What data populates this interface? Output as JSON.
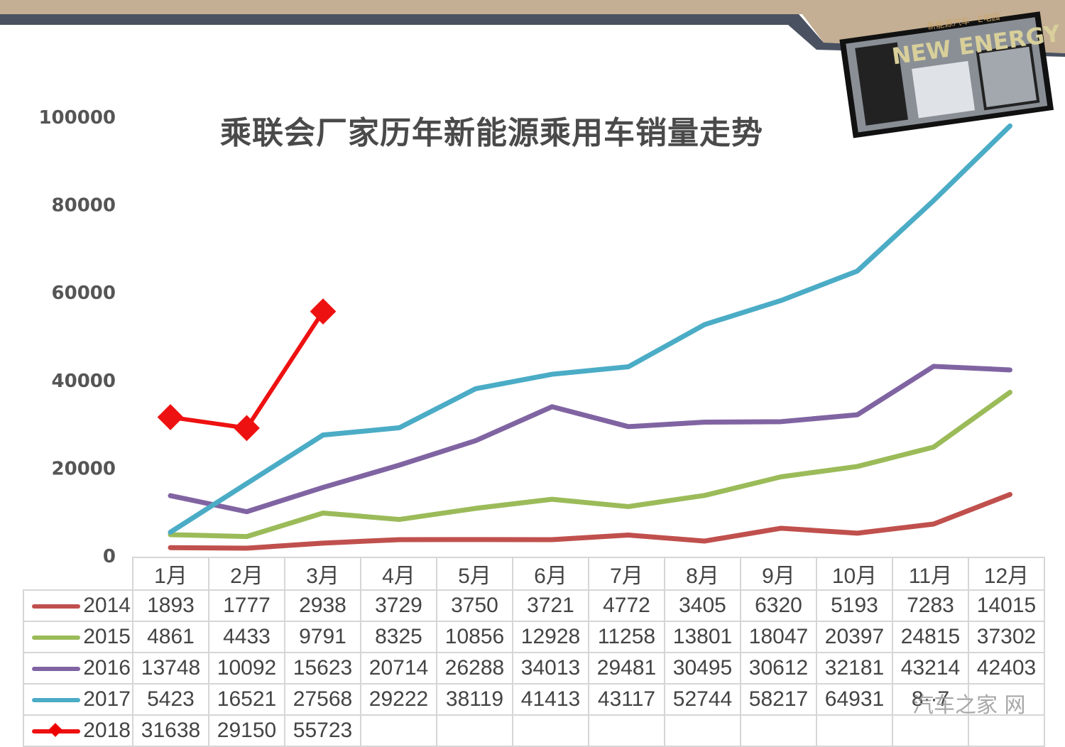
{
  "header": {
    "band_color": "#c4af94",
    "bar_color": "#4a5261"
  },
  "logo": {
    "text_top": "新能源汽车 · E电园",
    "text_main": "NEW ENERGY",
    "text_brand": "E电园"
  },
  "watermark": {
    "text": "汽车之家 网"
  },
  "table": {
    "months": [
      "1月",
      "2月",
      "3月",
      "4月",
      "5月",
      "6月",
      "7月",
      "8月",
      "9月",
      "10月",
      "11月",
      "12月"
    ],
    "rows": [
      {
        "year": "2014",
        "color": "#c0504d",
        "marker": "line",
        "cells": [
          "1893",
          "1777",
          "2938",
          "3729",
          "3750",
          "3721",
          "4772",
          "3405",
          "6320",
          "5193",
          "7283",
          "14015"
        ]
      },
      {
        "year": "2015",
        "color": "#9bbb59",
        "marker": "line",
        "cells": [
          "4861",
          "4433",
          "9791",
          "8325",
          "10856",
          "12928",
          "11258",
          "13801",
          "18047",
          "20397",
          "24815",
          "37302"
        ]
      },
      {
        "year": "2016",
        "color": "#8064a2",
        "marker": "line",
        "cells": [
          "13748",
          "10092",
          "15623",
          "20714",
          "26288",
          "34013",
          "29481",
          "30495",
          "30612",
          "32181",
          "43214",
          "42403"
        ]
      },
      {
        "year": "2017",
        "color": "#4bacc6",
        "marker": "line",
        "cells": [
          "5423",
          "16521",
          "27568",
          "29222",
          "38119",
          "41413",
          "43117",
          "52744",
          "58217",
          "64931",
          "8··7",
          ""
        ]
      },
      {
        "year": "2018",
        "color": "#ee1111",
        "marker": "diamond",
        "cells": [
          "31638",
          "29150",
          "55723",
          "",
          "",
          "",
          "",
          "",
          "",
          "",
          "",
          ""
        ]
      }
    ]
  },
  "chart_data": {
    "type": "line",
    "title": "乘联会厂家历年新能源乘用车销量走势",
    "xlabel": "",
    "ylabel": "",
    "categories": [
      "1月",
      "2月",
      "3月",
      "4月",
      "5月",
      "6月",
      "7月",
      "8月",
      "9月",
      "10月",
      "11月",
      "12月"
    ],
    "ylim": [
      0,
      100000
    ],
    "yticks": [
      0,
      20000,
      40000,
      60000,
      80000,
      100000
    ],
    "grid": false,
    "legend_position": "data-table-bottom",
    "series": [
      {
        "name": "2014",
        "color": "#c0504d",
        "values": [
          1893,
          1777,
          2938,
          3729,
          3750,
          3721,
          4772,
          3405,
          6320,
          5193,
          7283,
          14015
        ]
      },
      {
        "name": "2015",
        "color": "#9bbb59",
        "values": [
          4861,
          4433,
          9791,
          8325,
          10856,
          12928,
          11258,
          13801,
          18047,
          20397,
          24815,
          37302
        ]
      },
      {
        "name": "2016",
        "color": "#8064a2",
        "values": [
          13748,
          10092,
          15623,
          20714,
          26288,
          34013,
          29481,
          30495,
          30612,
          32181,
          43214,
          42403
        ]
      },
      {
        "name": "2017",
        "color": "#4bacc6",
        "values": [
          5423,
          16521,
          27568,
          29222,
          38119,
          41413,
          43117,
          52744,
          58217,
          64931,
          81000,
          98000
        ]
      },
      {
        "name": "2018",
        "color": "#ee1111",
        "marker": "diamond",
        "values": [
          31638,
          29150,
          55723,
          null,
          null,
          null,
          null,
          null,
          null,
          null,
          null,
          null
        ]
      }
    ]
  }
}
